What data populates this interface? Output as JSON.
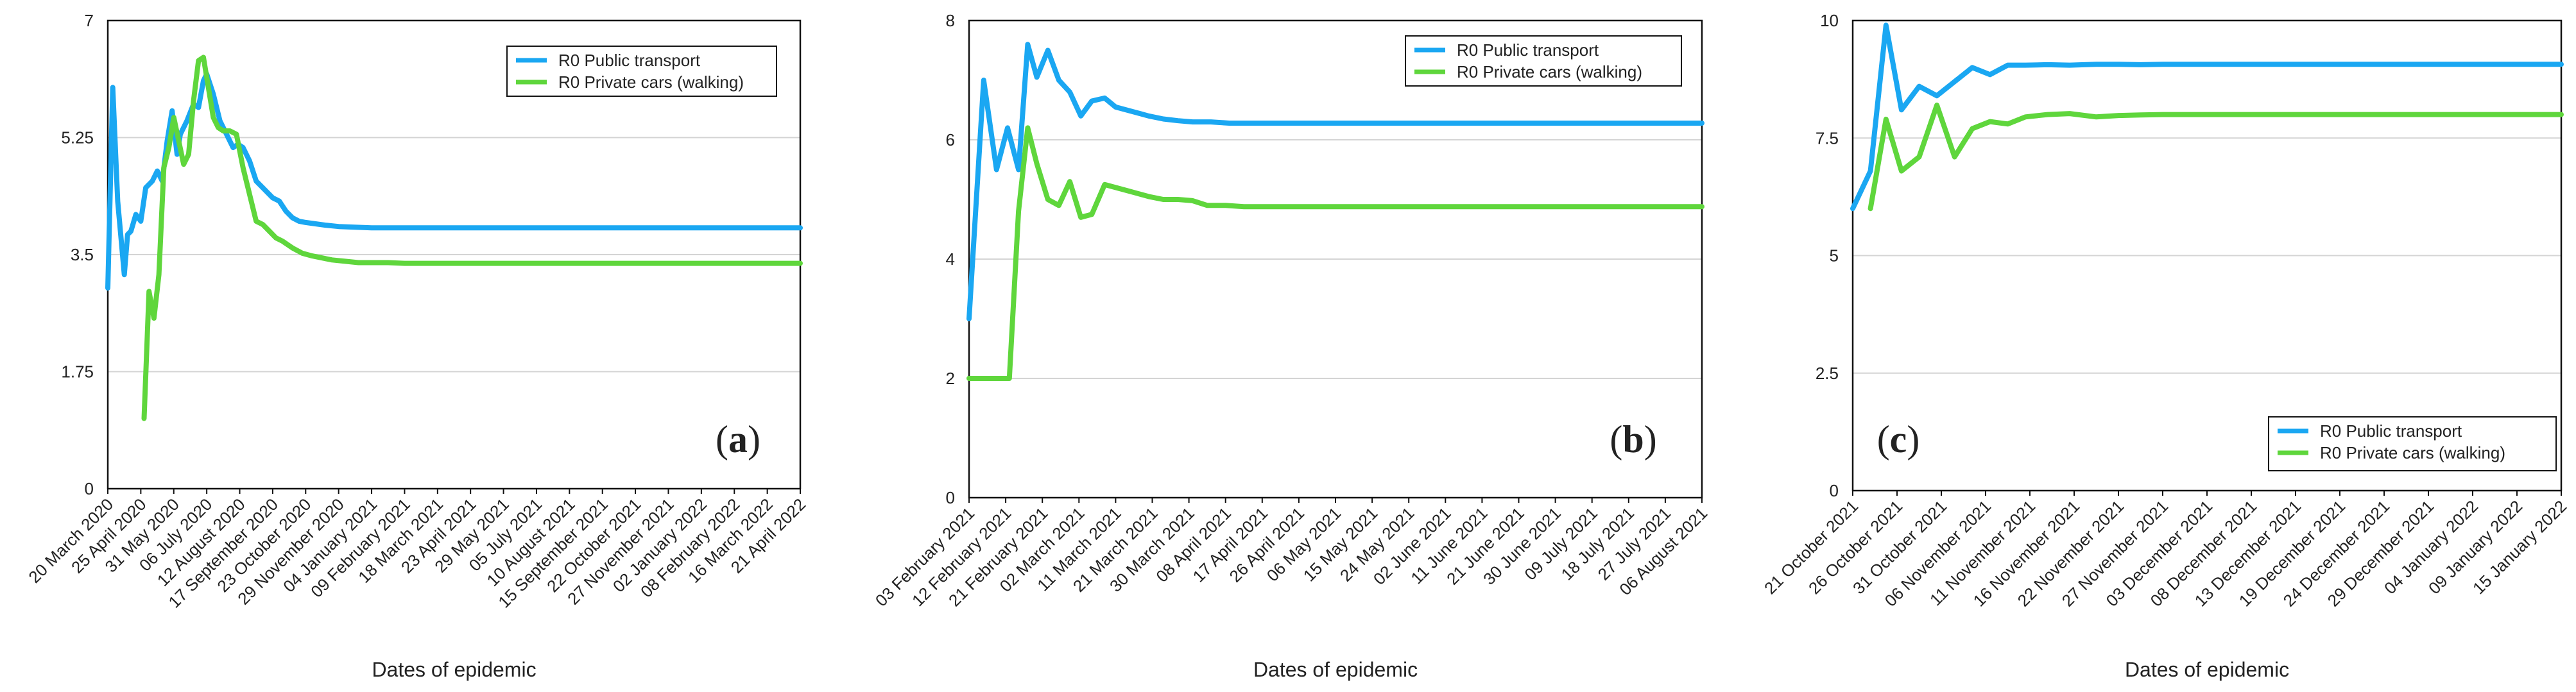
{
  "colors": {
    "public_transport": "#1aa7f2",
    "private_cars": "#5fd63c",
    "grid": "#d4d4d4",
    "axis": "#111111"
  },
  "chart_data": [
    {
      "type": "line",
      "panel_label": "a",
      "xlabel": "Dates of epidemic",
      "ylabel": "",
      "ylim": [
        0,
        7
      ],
      "yticks": [
        "0",
        "1.75",
        "3.5",
        "5.25",
        "7"
      ],
      "legend_position": "top-right",
      "x_ticks": [
        "20 March 2020",
        "25 April 2020",
        "31 May 2020",
        "06 July 2020",
        "12 August 2020",
        "17 September 2020",
        "23 October 2020",
        "29 November 2020",
        "04 January 2021",
        "09 February 2021",
        "18 March 2021",
        "23 April 2021",
        "29 May 2021",
        "05 July 2021",
        "10 August 2021",
        "15 September 2021",
        "22 October 2021",
        "27 November 2021",
        "02 January 2022",
        "08 February 2022",
        "16 March 2022",
        "21 April 2022"
      ],
      "x_range": [
        0,
        21
      ],
      "series": [
        {
          "name": "R0 Public transport",
          "color_key": "public_transport",
          "x": [
            0,
            0.15,
            0.3,
            0.5,
            0.6,
            0.7,
            0.85,
            1.0,
            1.15,
            1.35,
            1.5,
            1.65,
            1.8,
            1.95,
            2.1,
            2.2,
            2.4,
            2.6,
            2.75,
            2.9,
            3.0,
            3.2,
            3.4,
            3.6,
            3.8,
            3.95,
            4.1,
            4.3,
            4.5,
            4.8,
            5.0,
            5.2,
            5.4,
            5.6,
            5.8,
            6.0,
            6.3,
            6.6,
            7.0,
            7.5,
            8.0,
            8.5,
            9.0,
            10.0,
            11.0,
            12.0,
            13.0,
            14.0,
            15.0,
            16.0,
            17.0,
            18.0,
            19.0,
            20.0,
            21.0
          ],
          "values": [
            3.0,
            6.0,
            4.3,
            3.2,
            3.8,
            3.85,
            4.1,
            4.0,
            4.5,
            4.6,
            4.75,
            4.6,
            5.2,
            5.65,
            5.0,
            5.3,
            5.5,
            5.75,
            5.7,
            6.1,
            6.2,
            5.9,
            5.5,
            5.3,
            5.1,
            5.15,
            5.1,
            4.9,
            4.6,
            4.45,
            4.35,
            4.3,
            4.15,
            4.05,
            4.0,
            3.98,
            3.96,
            3.94,
            3.92,
            3.91,
            3.9,
            3.9,
            3.9,
            3.9,
            3.9,
            3.9,
            3.9,
            3.9,
            3.9,
            3.9,
            3.9,
            3.9,
            3.9,
            3.9,
            3.9
          ]
        },
        {
          "name": "R0 Private cars (walking)",
          "color_key": "private_cars",
          "x": [
            1.1,
            1.25,
            1.4,
            1.55,
            1.7,
            1.85,
            2.0,
            2.15,
            2.3,
            2.45,
            2.6,
            2.75,
            2.9,
            3.05,
            3.2,
            3.35,
            3.5,
            3.7,
            3.9,
            4.1,
            4.3,
            4.5,
            4.7,
            4.9,
            5.1,
            5.3,
            5.6,
            5.9,
            6.2,
            6.5,
            6.8,
            7.2,
            7.6,
            8.0,
            8.5,
            9.0,
            10.0,
            11.0,
            12.0,
            13.0,
            14.0,
            15.0,
            16.0,
            17.0,
            18.0,
            19.0,
            20.0,
            21.0
          ],
          "values": [
            1.05,
            2.95,
            2.55,
            3.2,
            4.8,
            5.1,
            5.55,
            5.2,
            4.85,
            5.0,
            5.8,
            6.4,
            6.45,
            6.0,
            5.55,
            5.4,
            5.35,
            5.35,
            5.3,
            4.8,
            4.4,
            4.0,
            3.95,
            3.85,
            3.75,
            3.7,
            3.6,
            3.52,
            3.48,
            3.45,
            3.42,
            3.4,
            3.38,
            3.38,
            3.38,
            3.37,
            3.37,
            3.37,
            3.37,
            3.37,
            3.37,
            3.37,
            3.37,
            3.37,
            3.37,
            3.37,
            3.37,
            3.37
          ]
        }
      ]
    },
    {
      "type": "line",
      "panel_label": "b",
      "xlabel": "Dates of epidemic",
      "ylabel": "",
      "ylim": [
        0,
        8
      ],
      "yticks": [
        "0",
        "2",
        "4",
        "6",
        "8"
      ],
      "legend_position": "top-right",
      "x_ticks": [
        "03 February 2021",
        "12 February 2021",
        "21 February 2021",
        "02 March 2021",
        "11 March 2021",
        "21 March 2021",
        "30 March 2021",
        "08 April 2021",
        "17 April 2021",
        "26 April 2021",
        "06 May 2021",
        "15 May 2021",
        "24 May 2021",
        "02 June 2021",
        "11 June 2021",
        "21 June 2021",
        "30 June 2021",
        "09 July 2021",
        "18 July 2021",
        "27 July 2021",
        "06 August 2021"
      ],
      "x_range": [
        0,
        20
      ],
      "series": [
        {
          "name": "R0 Public transport",
          "color_key": "public_transport",
          "x": [
            0,
            0.4,
            0.75,
            1.05,
            1.35,
            1.6,
            1.85,
            2.15,
            2.45,
            2.75,
            3.05,
            3.35,
            3.7,
            4.0,
            4.3,
            4.6,
            4.9,
            5.3,
            5.7,
            6.1,
            6.6,
            7.1,
            7.6,
            8.0,
            9.0,
            10.0,
            11.0,
            12.0,
            13.0,
            14.0,
            15.0,
            16.0,
            17.0,
            18.0,
            19.0,
            20.0
          ],
          "values": [
            3.0,
            7.0,
            5.5,
            6.2,
            5.5,
            7.6,
            7.05,
            7.5,
            7.0,
            6.8,
            6.4,
            6.65,
            6.7,
            6.55,
            6.5,
            6.45,
            6.4,
            6.35,
            6.32,
            6.3,
            6.3,
            6.28,
            6.28,
            6.28,
            6.28,
            6.28,
            6.28,
            6.28,
            6.28,
            6.28,
            6.28,
            6.28,
            6.28,
            6.28,
            6.28,
            6.28
          ]
        },
        {
          "name": "R0 Private cars (walking)",
          "color_key": "private_cars",
          "x": [
            0,
            0.4,
            0.8,
            1.1,
            1.35,
            1.6,
            1.85,
            2.15,
            2.45,
            2.75,
            3.05,
            3.35,
            3.7,
            4.0,
            4.3,
            4.6,
            4.9,
            5.3,
            5.7,
            6.1,
            6.5,
            7.0,
            7.5,
            8.0,
            9.0,
            10.0,
            11.0,
            12.0,
            13.0,
            14.0,
            15.0,
            16.0,
            17.0,
            18.0,
            19.0,
            20.0
          ],
          "values": [
            2.0,
            2.0,
            2.0,
            2.0,
            4.8,
            6.2,
            5.6,
            5.0,
            4.9,
            5.3,
            4.7,
            4.75,
            5.25,
            5.2,
            5.15,
            5.1,
            5.05,
            5.0,
            5.0,
            4.98,
            4.9,
            4.9,
            4.88,
            4.88,
            4.88,
            4.88,
            4.88,
            4.88,
            4.88,
            4.88,
            4.88,
            4.88,
            4.88,
            4.88,
            4.88,
            4.88
          ]
        }
      ]
    },
    {
      "type": "line",
      "panel_label": "c",
      "xlabel": "Dates of epidemic",
      "ylabel": "",
      "ylim": [
        0,
        10
      ],
      "yticks": [
        "0",
        "2.5",
        "5",
        "7.5",
        "10"
      ],
      "legend_position": "bottom-right",
      "x_ticks": [
        "21 October 2021",
        "26 October 2021",
        "31 October 2021",
        "06 November 2021",
        "11 November 2021",
        "16 November 2021",
        "22 November 2021",
        "27 November 2021",
        "03 December 2021",
        "08 December 2021",
        "13 December 2021",
        "19 December 2021",
        "24 December 2021",
        "29 December 2021",
        "04 January 2022",
        "09 January 2022",
        "15 January 2022"
      ],
      "x_range": [
        0,
        16
      ],
      "series": [
        {
          "name": "R0 Public transport",
          "color_key": "public_transport",
          "x": [
            0,
            0.4,
            0.75,
            1.1,
            1.5,
            1.9,
            2.3,
            2.7,
            3.1,
            3.5,
            3.9,
            4.4,
            4.9,
            5.5,
            6.0,
            6.5,
            7.0,
            8.0,
            9.0,
            10.0,
            11.0,
            12.0,
            13.0,
            14.0,
            15.0,
            16.0
          ],
          "values": [
            6.0,
            6.8,
            9.9,
            8.1,
            8.6,
            8.4,
            8.7,
            9.0,
            8.85,
            9.05,
            9.05,
            9.06,
            9.05,
            9.07,
            9.07,
            9.06,
            9.07,
            9.07,
            9.07,
            9.07,
            9.07,
            9.07,
            9.07,
            9.07,
            9.07,
            9.07
          ]
        },
        {
          "name": "R0 Private cars (walking)",
          "color_key": "private_cars",
          "x": [
            0.4,
            0.75,
            1.1,
            1.5,
            1.9,
            2.3,
            2.7,
            3.1,
            3.5,
            3.9,
            4.4,
            4.9,
            5.5,
            6.0,
            6.5,
            7.0,
            8.0,
            9.0,
            10.0,
            11.0,
            12.0,
            13.0,
            14.0,
            15.0,
            16.0
          ],
          "values": [
            6.0,
            7.9,
            6.8,
            7.1,
            8.2,
            7.1,
            7.7,
            7.85,
            7.8,
            7.95,
            8.0,
            8.02,
            7.95,
            7.98,
            7.99,
            8.0,
            8.0,
            8.0,
            8.0,
            8.0,
            8.0,
            8.0,
            8.0,
            8.0,
            8.0
          ]
        }
      ]
    }
  ]
}
